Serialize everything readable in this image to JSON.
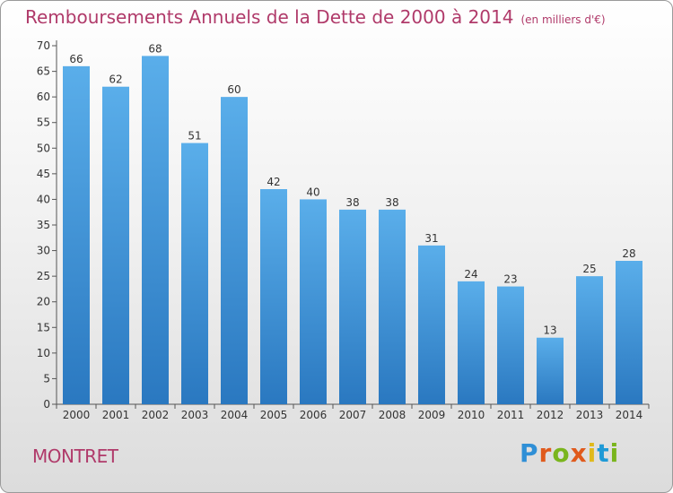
{
  "title": "Remboursements Annuels de la Dette de 2000 à 2014",
  "unit_note": "(en milliers d'€)",
  "town": "MONTRET",
  "brand": {
    "text": "Proxiti",
    "colors": [
      "#2f8fd6",
      "#e05a1c",
      "#7ab51d",
      "#e05a1c",
      "#e0b91c",
      "#1f9ad6",
      "#7ab51d"
    ]
  },
  "colors": {
    "title": "#b03a6a",
    "bar_top": "#5aaeea",
    "bar_bottom": "#2a78c0",
    "axis": "#555555",
    "grid": "#d0d0d0"
  },
  "chart_data": {
    "type": "bar",
    "title": "Remboursements Annuels de la Dette de 2000 à 2014",
    "categories": [
      "2000",
      "2001",
      "2002",
      "2003",
      "2004",
      "2005",
      "2006",
      "2007",
      "2008",
      "2009",
      "2010",
      "2011",
      "2012",
      "2013",
      "2014"
    ],
    "values": [
      66,
      62,
      68,
      51,
      60,
      42,
      40,
      38,
      38,
      31,
      24,
      23,
      13,
      25,
      28
    ],
    "ylim": [
      0,
      70
    ],
    "yticks": [
      0,
      5,
      10,
      15,
      20,
      25,
      30,
      35,
      40,
      45,
      50,
      55,
      60,
      65,
      70
    ],
    "grid": false,
    "data_labels": true
  }
}
